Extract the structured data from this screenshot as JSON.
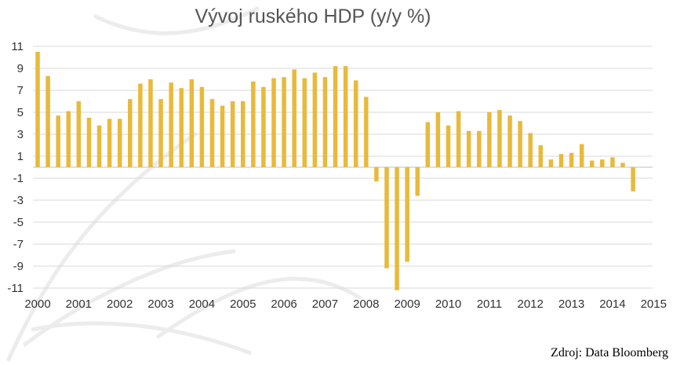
{
  "chart_data": {
    "type": "bar",
    "title": "Vývoj ruského HDP (y/y %)",
    "xlabel": "",
    "ylabel": "",
    "ylim": [
      -11,
      11
    ],
    "y_ticks": [
      11,
      9,
      7,
      5,
      3,
      1,
      -1,
      -3,
      -5,
      -7,
      -9,
      -11
    ],
    "x_tick_labels": [
      "2000",
      "2001",
      "2002",
      "2003",
      "2004",
      "2005",
      "2006",
      "2007",
      "2008",
      "2009",
      "2010",
      "2011",
      "2012",
      "2013",
      "2014",
      "2015"
    ],
    "quarters_per_year": 4,
    "grid": true,
    "legend": "none",
    "bar_color": "#e8b93b",
    "values": [
      10.5,
      8.3,
      4.7,
      5.1,
      6.0,
      4.5,
      3.8,
      4.4,
      4.4,
      6.2,
      7.6,
      8.0,
      6.2,
      7.7,
      7.2,
      8.0,
      7.3,
      6.2,
      5.6,
      6.0,
      6.0,
      7.8,
      7.3,
      8.1,
      8.2,
      8.9,
      8.1,
      8.6,
      8.2,
      9.2,
      9.2,
      7.9,
      6.4,
      -1.3,
      -9.2,
      -11.2,
      -8.6,
      -2.6,
      4.1,
      5.0,
      3.8,
      5.1,
      3.3,
      3.3,
      5.0,
      5.2,
      4.7,
      4.2,
      3.1,
      2.0,
      0.7,
      1.2,
      1.3,
      2.1,
      0.6,
      0.7,
      0.9,
      0.4,
      -2.2
    ]
  },
  "source": "Zdroj: Data Bloomberg"
}
